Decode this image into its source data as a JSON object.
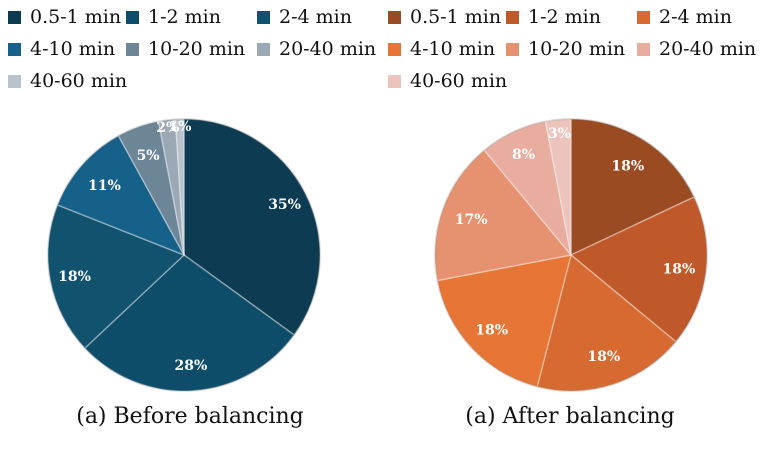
{
  "chart_data": [
    {
      "type": "pie",
      "title": "",
      "caption": "(a) Before balancing",
      "categories": [
        "0.5-1 min",
        "1-2 min",
        "2-4 min",
        "4-10 min",
        "10-20 min",
        "20-40 min",
        "40-60 min"
      ],
      "values": [
        35,
        28,
        18,
        11,
        5,
        2,
        1
      ],
      "labels": [
        "35%",
        "28%",
        "18%",
        "11%",
        "5%",
        "2%",
        "1%"
      ],
      "colors": [
        "#0c3b52",
        "#0d4d6a",
        "#11526f",
        "#16618a",
        "#6c8597",
        "#9aa9b5",
        "#b9c3cb"
      ],
      "legend_position": "top"
    },
    {
      "type": "pie",
      "title": "",
      "caption": "(a) After balancing",
      "categories": [
        "0.5-1 min",
        "1-2 min",
        "2-4 min",
        "4-10 min",
        "10-20 min",
        "20-40 min",
        "40-60 min"
      ],
      "values": [
        18,
        18,
        18,
        18,
        17,
        8,
        3
      ],
      "labels": [
        "18%",
        "18%",
        "18%",
        "18%",
        "17%",
        "8%",
        "3%"
      ],
      "colors": [
        "#9b4b22",
        "#c0592a",
        "#d66a31",
        "#e77535",
        "#e69270",
        "#e9ada0",
        "#edc4bd"
      ],
      "legend_position": "top"
    }
  ]
}
